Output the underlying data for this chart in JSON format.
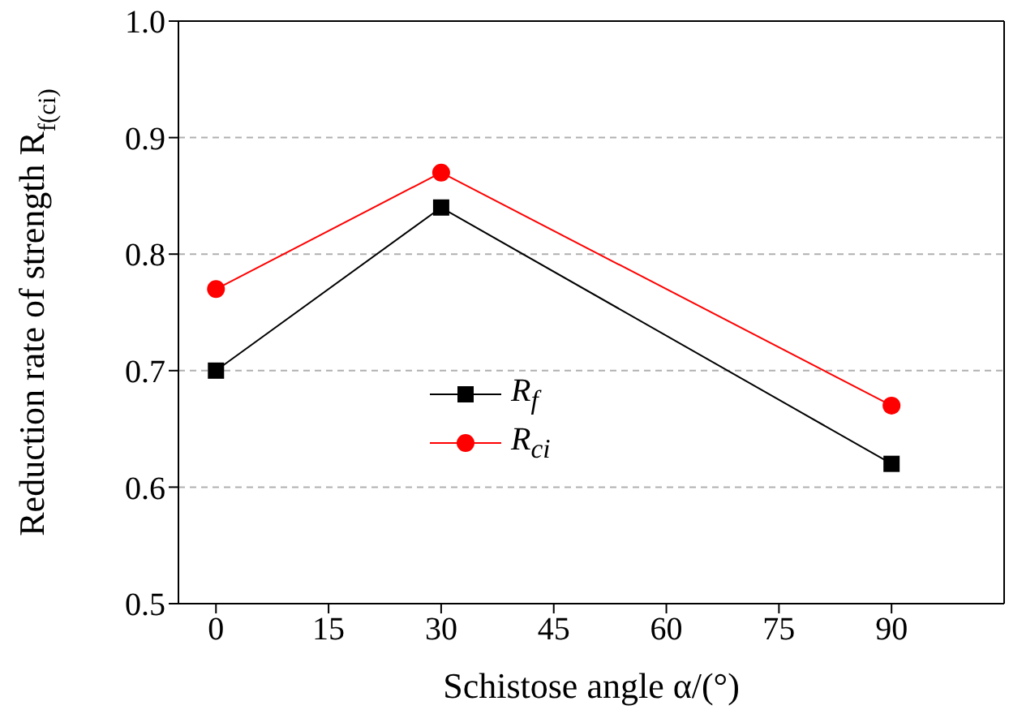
{
  "chart_data": {
    "type": "line",
    "xlabel": "Schistose angle α/(°)",
    "ylabel": "Reduction rate of strength R$_{f(ci)}$",
    "x": [
      0,
      30,
      90
    ],
    "series": [
      {
        "name": "R$_{f}$",
        "color": "#000000",
        "values": [
          0.7,
          0.84,
          0.62
        ],
        "marker": "square"
      },
      {
        "name": "R$_{ci}$",
        "color": "#ff0000",
        "values": [
          0.77,
          0.87,
          0.67
        ],
        "marker": "circle"
      }
    ],
    "xlim": [
      -5,
      105
    ],
    "xticks": [
      0,
      15,
      30,
      45,
      60,
      75,
      90
    ],
    "ylim": [
      0.5,
      1.0
    ],
    "yticks": [
      {
        "value": 0.5,
        "label": "0.5"
      },
      {
        "value": 0.6,
        "label": "0.6"
      },
      {
        "value": 0.7,
        "label": "0.7"
      },
      {
        "value": 0.8,
        "label": "0.8"
      },
      {
        "value": 0.9,
        "label": "0.9"
      },
      {
        "value": 1.0,
        "label": "1.0"
      }
    ],
    "grid": "y",
    "legend": "center",
    "line_style": "solid"
  }
}
